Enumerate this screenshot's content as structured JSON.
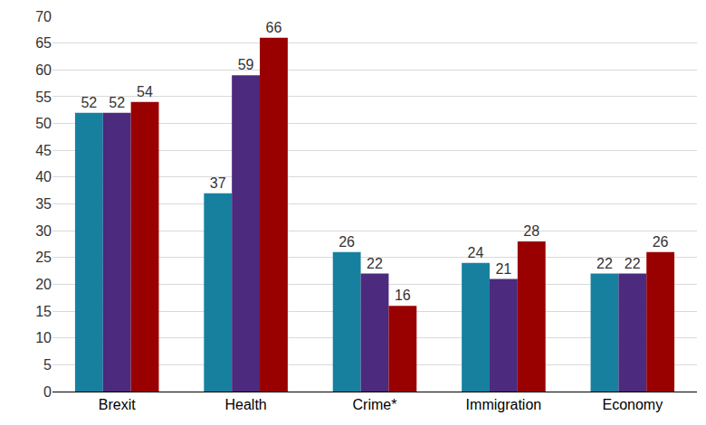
{
  "chart_data": {
    "type": "bar",
    "categories": [
      "Brexit",
      "Health",
      "Crime*",
      "Immigration",
      "Economy"
    ],
    "series": [
      {
        "color": "#17809f",
        "values": [
          52,
          37,
          26,
          24,
          22
        ]
      },
      {
        "color": "#4c2a7d",
        "values": [
          52,
          59,
          22,
          21,
          22
        ]
      },
      {
        "color": "#990000",
        "values": [
          54,
          66,
          16,
          28,
          26
        ]
      }
    ],
    "ylim": [
      0,
      70
    ],
    "yticks": [
      0,
      5,
      10,
      15,
      20,
      25,
      30,
      35,
      40,
      45,
      50,
      55,
      60,
      65,
      70
    ],
    "grid": true,
    "data_labels": true
  }
}
